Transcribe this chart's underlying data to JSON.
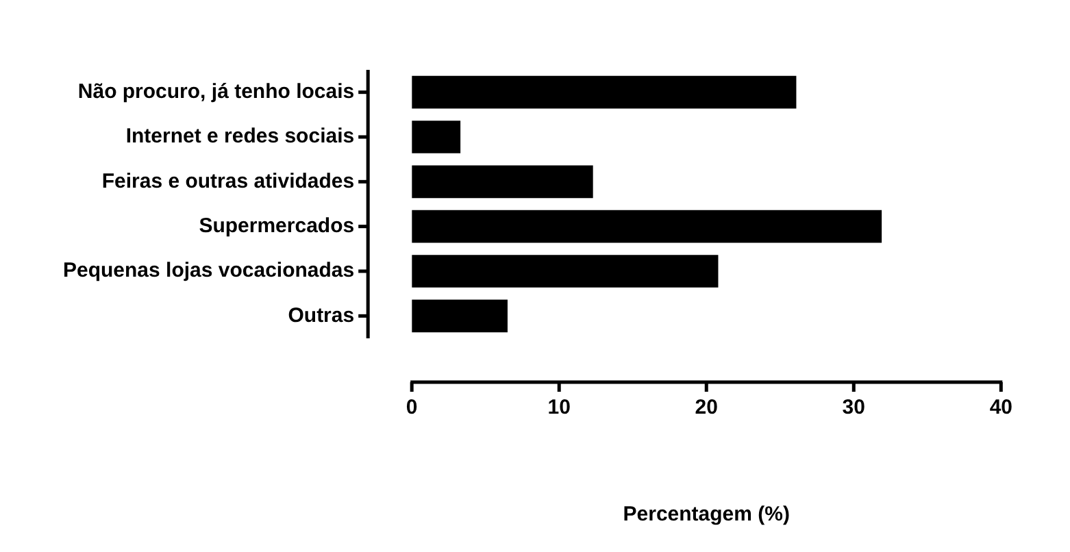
{
  "chart_data": {
    "type": "bar",
    "orientation": "horizontal",
    "xlabel": "Percentagem (%)",
    "categories": [
      "Não procuro, já tenho locais",
      "Internet e redes sociais",
      "Feiras e outras atividades",
      "Supermercados",
      "Pequenas lojas vocacionadas",
      "Outras"
    ],
    "values": [
      26.1,
      3.3,
      12.3,
      31.9,
      20.8,
      6.5
    ],
    "color": "#000000",
    "xlim": [
      0,
      40
    ],
    "xticks": [
      0,
      10,
      20,
      30,
      40
    ],
    "grid": false,
    "legend": false
  }
}
